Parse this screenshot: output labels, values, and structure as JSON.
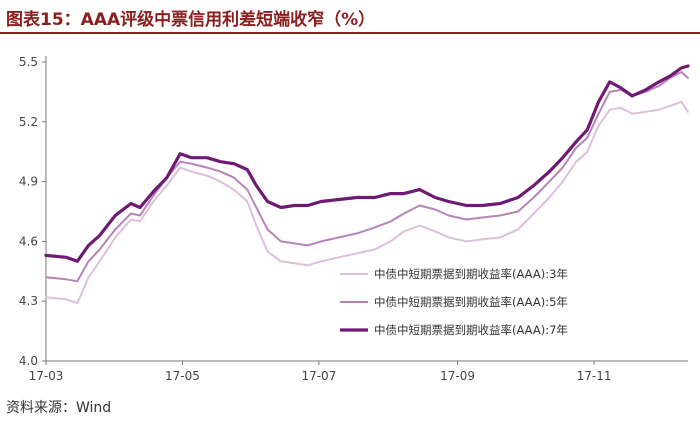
{
  "title": "图表15：AAA评级中票信用利差短端收窄（%）",
  "source": "资料来源：Wind",
  "chart_data": {
    "type": "line",
    "ylim": [
      4.0,
      5.5
    ],
    "yticks": [
      "4.0",
      "4.3",
      "4.6",
      "4.9",
      "5.2",
      "5.5"
    ],
    "xlim": [
      "2017-03-01",
      "2017-12-13"
    ],
    "xticks": [
      {
        "date": "2017-03-01",
        "label": "17-03"
      },
      {
        "date": "2017-05-01",
        "label": "17-05"
      },
      {
        "date": "2017-07-01",
        "label": "17-07"
      },
      {
        "date": "2017-09-01",
        "label": "17-09"
      },
      {
        "date": "2017-11-01",
        "label": "17-11"
      }
    ],
    "legend_position": "bottom-right",
    "series": [
      {
        "name": "中债中短期票据到期收益率(AAA):3年",
        "color": "#dcbfdc",
        "width": 2,
        "points": [
          [
            "2017-03-01",
            4.32
          ],
          [
            "2017-03-10",
            4.31
          ],
          [
            "2017-03-15",
            4.29
          ],
          [
            "2017-03-20",
            4.42
          ],
          [
            "2017-03-25",
            4.5
          ],
          [
            "2017-04-01",
            4.62
          ],
          [
            "2017-04-08",
            4.71
          ],
          [
            "2017-04-12",
            4.7
          ],
          [
            "2017-04-18",
            4.8
          ],
          [
            "2017-04-24",
            4.88
          ],
          [
            "2017-04-30",
            4.97
          ],
          [
            "2017-05-05",
            4.95
          ],
          [
            "2017-05-12",
            4.93
          ],
          [
            "2017-05-18",
            4.9
          ],
          [
            "2017-05-24",
            4.86
          ],
          [
            "2017-05-30",
            4.8
          ],
          [
            "2017-06-03",
            4.68
          ],
          [
            "2017-06-08",
            4.55
          ],
          [
            "2017-06-14",
            4.5
          ],
          [
            "2017-06-20",
            4.49
          ],
          [
            "2017-06-26",
            4.48
          ],
          [
            "2017-07-02",
            4.5
          ],
          [
            "2017-07-10",
            4.52
          ],
          [
            "2017-07-18",
            4.54
          ],
          [
            "2017-07-26",
            4.56
          ],
          [
            "2017-08-02",
            4.6
          ],
          [
            "2017-08-08",
            4.65
          ],
          [
            "2017-08-15",
            4.68
          ],
          [
            "2017-08-22",
            4.65
          ],
          [
            "2017-08-28",
            4.62
          ],
          [
            "2017-09-05",
            4.6
          ],
          [
            "2017-09-12",
            4.61
          ],
          [
            "2017-09-20",
            4.62
          ],
          [
            "2017-09-28",
            4.66
          ],
          [
            "2017-10-05",
            4.74
          ],
          [
            "2017-10-12",
            4.82
          ],
          [
            "2017-10-18",
            4.9
          ],
          [
            "2017-10-24",
            5.0
          ],
          [
            "2017-10-29",
            5.05
          ],
          [
            "2017-11-03",
            5.18
          ],
          [
            "2017-11-08",
            5.26
          ],
          [
            "2017-11-13",
            5.27
          ],
          [
            "2017-11-18",
            5.24
          ],
          [
            "2017-11-24",
            5.25
          ],
          [
            "2017-11-30",
            5.26
          ],
          [
            "2017-12-05",
            5.28
          ],
          [
            "2017-12-10",
            5.3
          ],
          [
            "2017-12-13",
            5.25
          ]
        ]
      },
      {
        "name": "中债中短期票据到期收益率(AAA):5年",
        "color": "#b783b8",
        "width": 2,
        "points": [
          [
            "2017-03-01",
            4.42
          ],
          [
            "2017-03-10",
            4.41
          ],
          [
            "2017-03-15",
            4.4
          ],
          [
            "2017-03-20",
            4.5
          ],
          [
            "2017-03-25",
            4.56
          ],
          [
            "2017-04-01",
            4.66
          ],
          [
            "2017-04-08",
            4.74
          ],
          [
            "2017-04-12",
            4.73
          ],
          [
            "2017-04-18",
            4.83
          ],
          [
            "2017-04-24",
            4.92
          ],
          [
            "2017-04-30",
            5.0
          ],
          [
            "2017-05-05",
            4.99
          ],
          [
            "2017-05-12",
            4.97
          ],
          [
            "2017-05-18",
            4.95
          ],
          [
            "2017-05-24",
            4.92
          ],
          [
            "2017-05-30",
            4.86
          ],
          [
            "2017-06-03",
            4.77
          ],
          [
            "2017-06-08",
            4.66
          ],
          [
            "2017-06-14",
            4.6
          ],
          [
            "2017-06-20",
            4.59
          ],
          [
            "2017-06-26",
            4.58
          ],
          [
            "2017-07-02",
            4.6
          ],
          [
            "2017-07-10",
            4.62
          ],
          [
            "2017-07-18",
            4.64
          ],
          [
            "2017-07-26",
            4.67
          ],
          [
            "2017-08-02",
            4.7
          ],
          [
            "2017-08-08",
            4.74
          ],
          [
            "2017-08-15",
            4.78
          ],
          [
            "2017-08-22",
            4.76
          ],
          [
            "2017-08-28",
            4.73
          ],
          [
            "2017-09-05",
            4.71
          ],
          [
            "2017-09-12",
            4.72
          ],
          [
            "2017-09-20",
            4.73
          ],
          [
            "2017-09-28",
            4.75
          ],
          [
            "2017-10-05",
            4.82
          ],
          [
            "2017-10-12",
            4.9
          ],
          [
            "2017-10-18",
            4.97
          ],
          [
            "2017-10-24",
            5.07
          ],
          [
            "2017-10-29",
            5.12
          ],
          [
            "2017-11-03",
            5.24
          ],
          [
            "2017-11-08",
            5.35
          ],
          [
            "2017-11-13",
            5.36
          ],
          [
            "2017-11-18",
            5.33
          ],
          [
            "2017-11-24",
            5.35
          ],
          [
            "2017-11-30",
            5.38
          ],
          [
            "2017-12-05",
            5.42
          ],
          [
            "2017-12-10",
            5.45
          ],
          [
            "2017-12-13",
            5.42
          ]
        ]
      },
      {
        "name": "中债中短期票据到期收益率(AAA):7年",
        "color": "#6e1a74",
        "width": 3.2,
        "points": [
          [
            "2017-03-01",
            4.53
          ],
          [
            "2017-03-10",
            4.52
          ],
          [
            "2017-03-15",
            4.5
          ],
          [
            "2017-03-20",
            4.58
          ],
          [
            "2017-03-25",
            4.63
          ],
          [
            "2017-04-01",
            4.73
          ],
          [
            "2017-04-08",
            4.79
          ],
          [
            "2017-04-12",
            4.77
          ],
          [
            "2017-04-18",
            4.85
          ],
          [
            "2017-04-24",
            4.92
          ],
          [
            "2017-04-30",
            5.04
          ],
          [
            "2017-05-05",
            5.02
          ],
          [
            "2017-05-12",
            5.02
          ],
          [
            "2017-05-18",
            5.0
          ],
          [
            "2017-05-24",
            4.99
          ],
          [
            "2017-05-30",
            4.96
          ],
          [
            "2017-06-03",
            4.88
          ],
          [
            "2017-06-08",
            4.8
          ],
          [
            "2017-06-14",
            4.77
          ],
          [
            "2017-06-20",
            4.78
          ],
          [
            "2017-06-26",
            4.78
          ],
          [
            "2017-07-02",
            4.8
          ],
          [
            "2017-07-10",
            4.81
          ],
          [
            "2017-07-18",
            4.82
          ],
          [
            "2017-07-26",
            4.82
          ],
          [
            "2017-08-02",
            4.84
          ],
          [
            "2017-08-08",
            4.84
          ],
          [
            "2017-08-15",
            4.86
          ],
          [
            "2017-08-22",
            4.82
          ],
          [
            "2017-08-28",
            4.8
          ],
          [
            "2017-09-05",
            4.78
          ],
          [
            "2017-09-12",
            4.78
          ],
          [
            "2017-09-20",
            4.79
          ],
          [
            "2017-09-28",
            4.82
          ],
          [
            "2017-10-05",
            4.88
          ],
          [
            "2017-10-12",
            4.95
          ],
          [
            "2017-10-18",
            5.02
          ],
          [
            "2017-10-24",
            5.1
          ],
          [
            "2017-10-29",
            5.16
          ],
          [
            "2017-11-03",
            5.3
          ],
          [
            "2017-11-08",
            5.4
          ],
          [
            "2017-11-13",
            5.37
          ],
          [
            "2017-11-18",
            5.33
          ],
          [
            "2017-11-24",
            5.36
          ],
          [
            "2017-11-30",
            5.4
          ],
          [
            "2017-12-05",
            5.43
          ],
          [
            "2017-12-10",
            5.47
          ],
          [
            "2017-12-13",
            5.48
          ]
        ]
      }
    ]
  }
}
